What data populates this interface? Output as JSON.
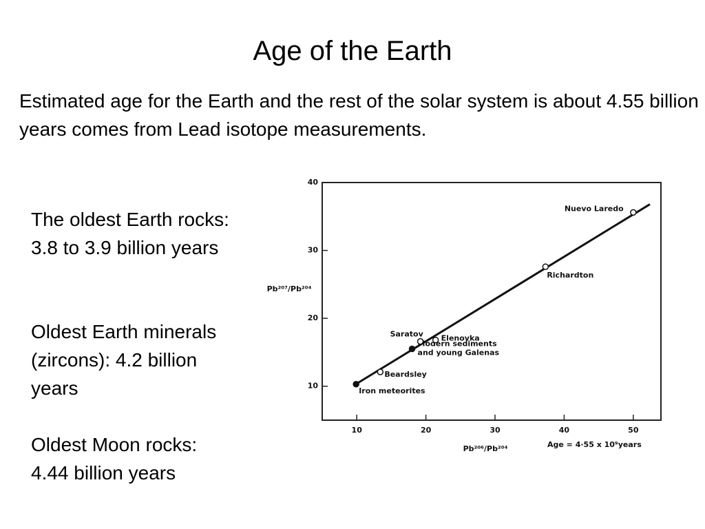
{
  "slide": {
    "title": "Age of the Earth",
    "intro": "Estimated age for the Earth and the rest of the solar system is about 4.55 billion years comes from Lead isotope measurements.",
    "facts": [
      "The oldest Earth rocks: 3.8 to 3.9 billion years",
      "Oldest Earth minerals (zircons): 4.2 billion years",
      "Oldest Moon rocks: 4.44 billion years"
    ]
  },
  "chart_data": {
    "type": "scatter",
    "x_label": "Pb²⁰⁶/Pb²⁰⁴",
    "y_label": "Pb²⁰⁷/Pb²⁰⁴",
    "annotation": "Age = 4·55 x 10⁹years",
    "xlim": [
      5,
      54
    ],
    "ylim": [
      5,
      40
    ],
    "xticks": [
      10,
      20,
      30,
      40,
      50
    ],
    "yticks": [
      10,
      20,
      30,
      40
    ],
    "color": "#111111",
    "series": [
      {
        "x": [
          9.9,
          13.4,
          18,
          19.2,
          21.4,
          37.3,
          50
        ],
        "values": [
          10.3,
          12.1,
          15.5,
          16.6,
          16.8,
          27.6,
          35.6
        ],
        "filled": [
          true,
          false,
          true,
          false,
          false,
          false,
          false
        ],
        "point_labels": [
          [
            "Iron meteorites"
          ],
          [
            "Beardsley"
          ],
          [
            "Modern sediments",
            "and young Galenas"
          ],
          [
            "Saratov"
          ],
          [
            "Elenovka"
          ],
          [
            "Richardton"
          ],
          [
            "Nuevo Laredo"
          ]
        ]
      }
    ],
    "fit_line": {
      "x": [
        9.7,
        52.4
      ],
      "values": [
        10.2,
        36.8
      ]
    }
  }
}
